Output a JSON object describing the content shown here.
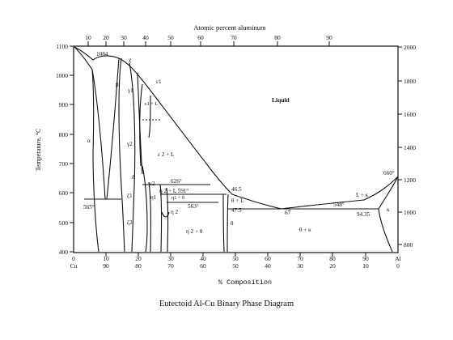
{
  "diagram": {
    "top_axis_title": "Atomic percent aluminum",
    "top_ticks": [
      "10",
      "20",
      "30",
      "40",
      "50",
      "60",
      "70",
      "80",
      "90"
    ],
    "left_axis_title": "Temperature, °C",
    "left_ticks": [
      "1100",
      "1000",
      "900",
      "800",
      "700",
      "600",
      "500",
      "400"
    ],
    "right_ticks": [
      "2000",
      "1800",
      "1600",
      "1400",
      "1200",
      "1000",
      "800"
    ],
    "bottom_left_label_top": "0",
    "bottom_left_label_bottom": "Cu",
    "bottom_right_label_top": "Al",
    "bottom_right_label_bottom": "0",
    "bottom_ticks_top": [
      "10",
      "20",
      "30",
      "40",
      "50",
      "60",
      "70",
      "80",
      "90"
    ],
    "bottom_ticks_bottom": [
      "90",
      "80",
      "70",
      "60",
      "50",
      "40",
      "30",
      "20",
      "10"
    ],
    "bottom_axis_title": "% Composition",
    "caption": "Eutectoid Al-Cu Binary Phase Diagram",
    "labels": {
      "t1084": "1084",
      "chi": "χ",
      "beta": "β",
      "gamma1": "γ1",
      "eps1": "ε1",
      "eps1_l": "ε1\n+\nL",
      "liquid": "Liquid",
      "alpha": "α",
      "gamma2": "γ2",
      "eps2_l": "ε 2 + L",
      "delta": "δ",
      "t626": "626°",
      "eps2": "ε2",
      "zeta1": "ζ1",
      "eta2_l": "η 2 + L  591°",
      "eta1": "η1",
      "eta1_theta": "η1 + θ",
      "eta2": "η 2",
      "t563": "563°",
      "t565": "565°",
      "zeta2": "ζ2",
      "c465": "46.5",
      "theta_l": "θ + L",
      "c475": "47.5",
      "c67": "67",
      "t548": "548°",
      "c9435": "94.35",
      "l_kappa": "L + κ",
      "kappa": "κ",
      "t660": "660°",
      "eta2_theta": "η 2 + θ",
      "theta": "θ",
      "theta_kappa": "θ + κ"
    }
  }
}
